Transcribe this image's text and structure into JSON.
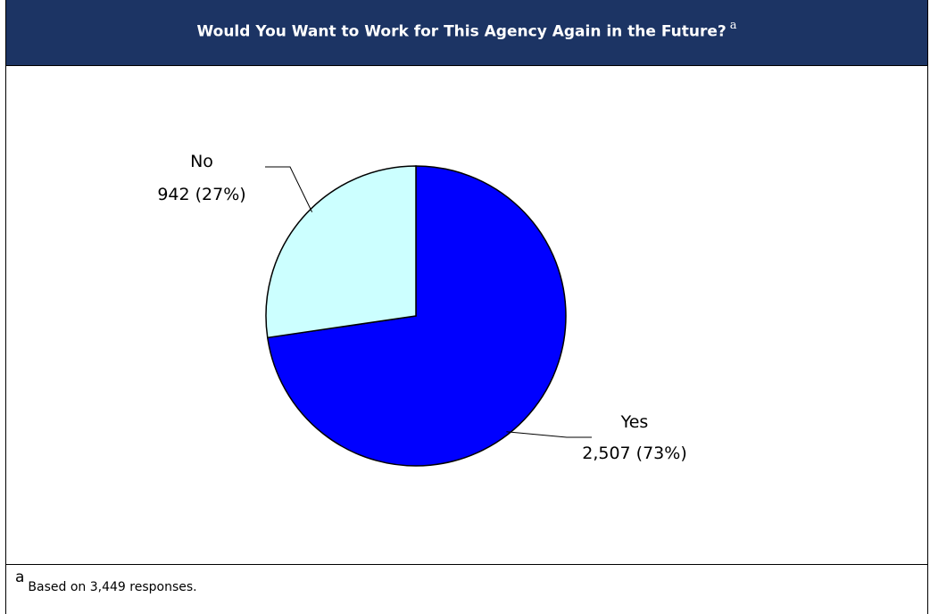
{
  "chart_data": {
    "type": "pie",
    "title": "Would You Want to Work for This Agency Again in the Future?",
    "title_footnote_mark": "a",
    "slices": [
      {
        "label": "Yes",
        "value": 2507,
        "display": "2,507 (73%)",
        "color": "#0000ff"
      },
      {
        "label": "No",
        "value": 942,
        "display": "942 (27%)",
        "color": "#ccffff"
      }
    ],
    "legend": "none"
  },
  "footnote": {
    "mark": "a",
    "text": "Based on 3,449 responses."
  },
  "colors": {
    "header_background": "#1c3464",
    "header_text": "#ffffff"
  }
}
